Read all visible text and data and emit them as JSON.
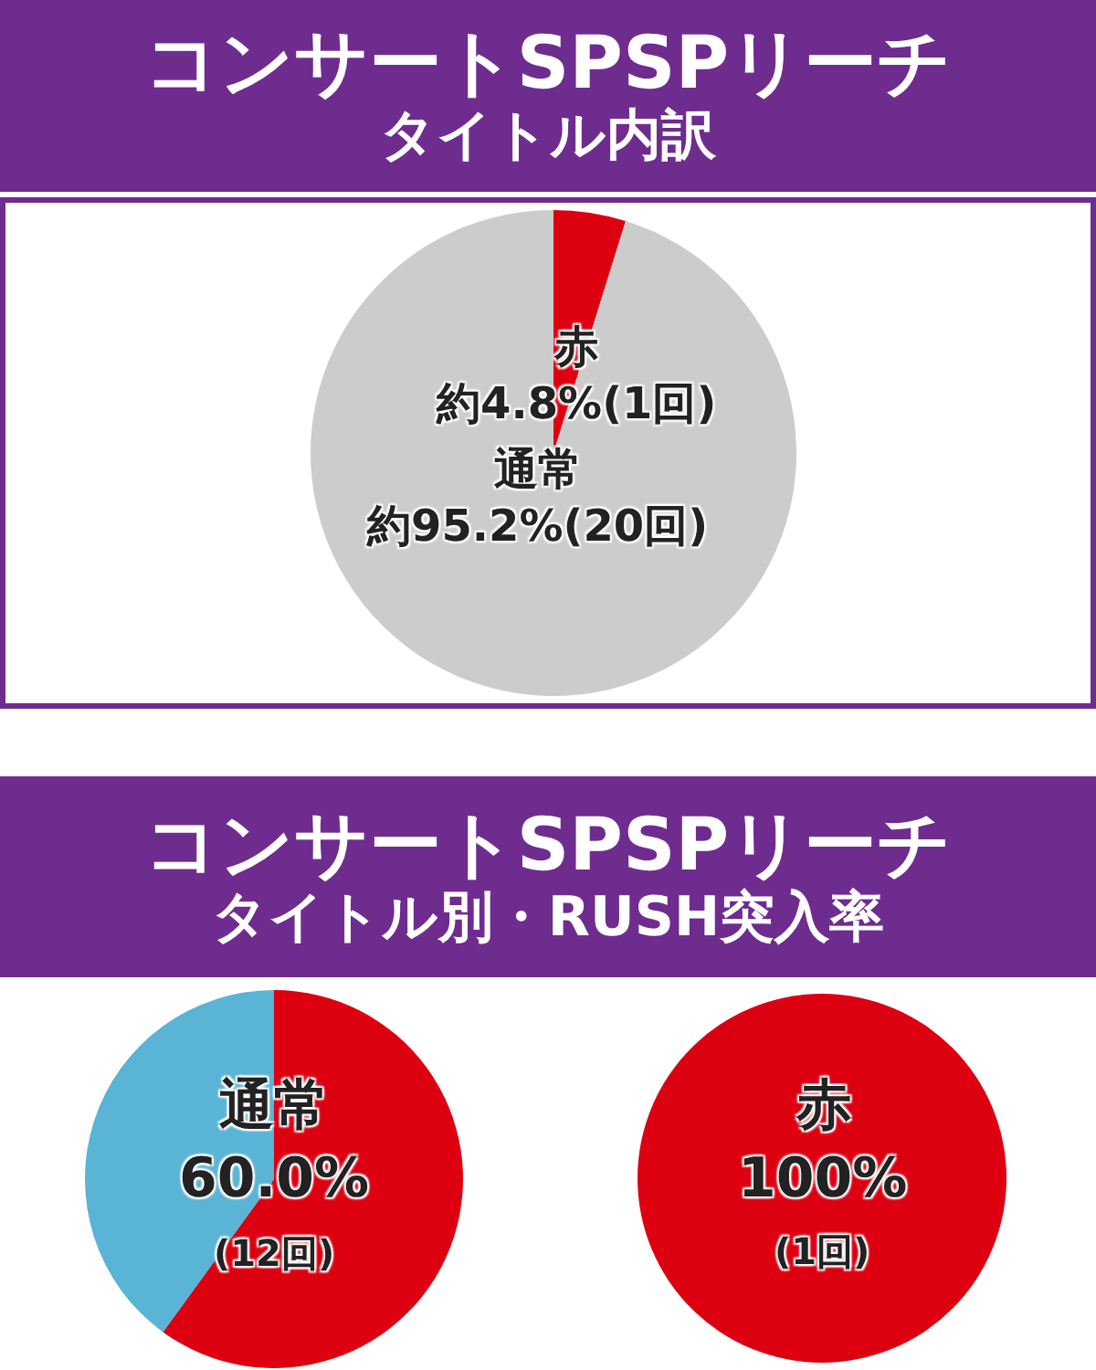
{
  "chart_data": [
    {
      "type": "pie",
      "title": "コンサートSPSPリーチ",
      "subtitle": "タイトル内訳",
      "categories": [
        "赤",
        "通常"
      ],
      "values": [
        4.8,
        95.2
      ],
      "colors": [
        "#dd0011",
        "#cccccc"
      ],
      "value_labels": [
        "約4.8%(1回)",
        "約95.2%(20回)"
      ]
    },
    {
      "type": "pie",
      "title": "コンサートSPSPリーチ",
      "subtitle": "タイトル別・RUSH突入率",
      "categories": [
        null,
        null
      ],
      "values": [
        60,
        40
      ],
      "colors": [
        "#dd0011",
        "#5ab4d6"
      ],
      "annotations": [
        "通常",
        "60.0%",
        "(12回)"
      ]
    },
    {
      "type": "pie",
      "categories": [
        null
      ],
      "values": [
        100
      ],
      "colors": [
        "#dd0011"
      ],
      "annotations": [
        "赤",
        "100%",
        "(1回)"
      ]
    }
  ]
}
